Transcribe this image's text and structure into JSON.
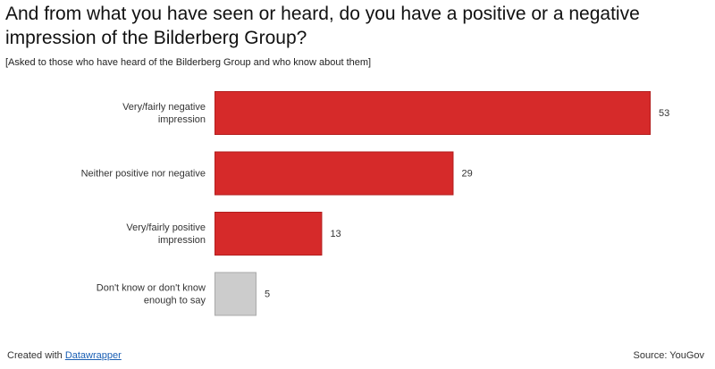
{
  "chart_data": {
    "type": "bar",
    "orientation": "horizontal",
    "title": "And from what you have seen or heard, do you have a positive or a negative impression of the Bilderberg Group?",
    "subtitle": "[Asked to those who have heard of the Bilderberg Group and who know about them]",
    "categories": [
      [
        "Very/fairly negative",
        "impression"
      ],
      [
        "Neither positive nor negative"
      ],
      [
        "Very/fairly positive",
        "impression"
      ],
      [
        "Don't know or don't know",
        "enough to say"
      ]
    ],
    "values": [
      53,
      29,
      13,
      5
    ],
    "value_labels": [
      "53",
      "29",
      "13",
      "5"
    ],
    "xlim": [
      0,
      53
    ],
    "grid": false,
    "legend": "none"
  },
  "colors": {
    "bar_primary": "#d62a2a",
    "bar_primary_border": "#b31e1e",
    "bar_neutral": "#cccccc",
    "bar_neutral_border": "#a8a8a8"
  },
  "footer": {
    "created_prefix": "Created with ",
    "created_link": "Datawrapper",
    "source": "Source: YouGov"
  }
}
